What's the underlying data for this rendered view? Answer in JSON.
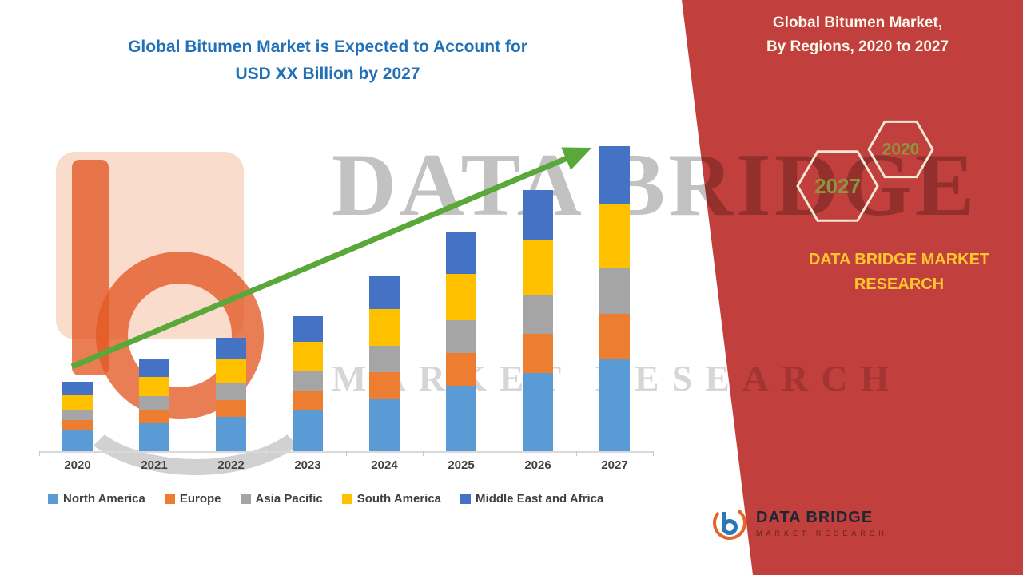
{
  "left_panel": {
    "title_line1": "Global Bitumen Market is Expected to Account for",
    "title_line2": "USD XX Billion by 2027"
  },
  "right_panel": {
    "heading_line1": "Global Bitumen Market,",
    "heading_line2": "By Regions, 2020 to 2027",
    "hexagon_front_label": "2027",
    "hexagon_back_label": "2020",
    "brand_line1": "DATA BRIDGE MARKET",
    "brand_line2": "RESEARCH",
    "footer_logo": {
      "name": "DATA BRIDGE",
      "subtitle": "MARKET RESEARCH"
    }
  },
  "watermark": {
    "line1": "DATA BRIDGE",
    "line2": "MARKET RESEARCH"
  },
  "chart_data": {
    "type": "bar",
    "stacked": true,
    "title": "Global Bitumen Market, By Regions, 2020 to 2027",
    "xlabel": "",
    "ylabel": "",
    "categories": [
      "2020",
      "2021",
      "2022",
      "2023",
      "2024",
      "2025",
      "2026",
      "2027"
    ],
    "series": [
      {
        "name": "North America",
        "color": "#5b9bd5",
        "values": [
          2.6,
          3.5,
          4.3,
          5.1,
          6.6,
          8.2,
          9.8,
          11.5
        ]
      },
      {
        "name": "Europe",
        "color": "#ed7d31",
        "values": [
          1.3,
          1.7,
          2.1,
          2.5,
          3.3,
          4.1,
          4.9,
          5.7
        ]
      },
      {
        "name": "Asia Pacific",
        "color": "#a5a5a5",
        "values": [
          1.3,
          1.7,
          2.1,
          2.5,
          3.3,
          4.1,
          4.9,
          5.7
        ]
      },
      {
        "name": "South America",
        "color": "#ffc000",
        "values": [
          1.8,
          2.4,
          3.0,
          3.6,
          4.6,
          5.8,
          6.9,
          8.0
        ]
      },
      {
        "name": "Middle East and Africa",
        "color": "#4472c4",
        "values": [
          1.7,
          2.2,
          2.7,
          3.2,
          4.2,
          5.2,
          6.2,
          7.3
        ]
      }
    ],
    "totals": [
      8.7,
      11.5,
      14.2,
      16.9,
      22.0,
      27.4,
      32.7,
      38.2
    ],
    "ylim": [
      0,
      40
    ],
    "grid": false,
    "legend_position": "bottom",
    "trend_arrow": true,
    "trend_arrow_color": "#5aa73a"
  },
  "colors": {
    "title_blue": "#2170b8",
    "panel_red": "#c13f3c",
    "banner_text_cream": "#fdf8ec",
    "brand_yellow": "#fdc62e",
    "hexagon_label_olive": "#8a973d",
    "hexagon_stroke": "#f2e8d5",
    "axis_gray": "#d9d9d9",
    "label_gray": "#404040"
  }
}
